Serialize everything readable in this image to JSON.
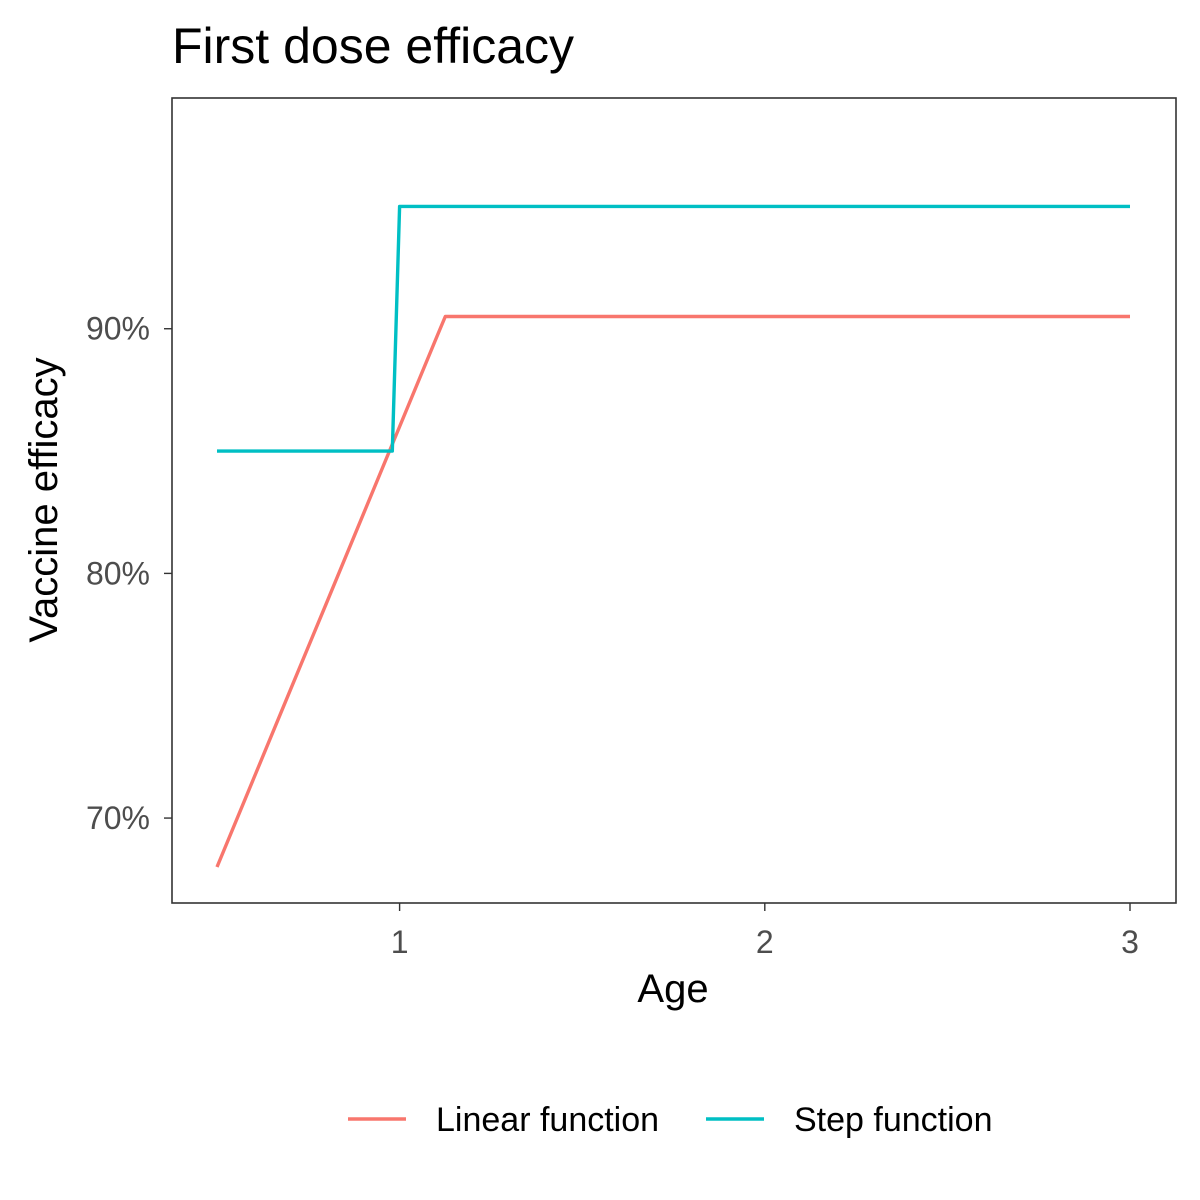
{
  "chart_data": {
    "type": "line",
    "title": "First dose efficacy",
    "xlabel": "Age",
    "ylabel": "Vaccine efficacy",
    "xlim": [
      0.5,
      3.0
    ],
    "ylim": [
      0.68,
      0.98
    ],
    "x_ticks": [
      {
        "value": 1,
        "label": "1"
      },
      {
        "value": 2,
        "label": "2"
      },
      {
        "value": 3,
        "label": "3"
      }
    ],
    "y_ticks": [
      {
        "value": 0.7,
        "label": "70%"
      },
      {
        "value": 0.8,
        "label": "80%"
      },
      {
        "value": 0.9,
        "label": "90%"
      }
    ],
    "grid": false,
    "legend_position": "bottom",
    "series": [
      {
        "name": "Linear function",
        "color": "#F8766D",
        "x": [
          0.5,
          0.6,
          0.7,
          0.8,
          0.9,
          1.0,
          1.1,
          1.125,
          1.5,
          2.0,
          2.5,
          3.0
        ],
        "y": [
          0.68,
          0.716,
          0.752,
          0.788,
          0.824,
          0.86,
          0.896,
          0.905,
          0.905,
          0.905,
          0.905,
          0.905
        ]
      },
      {
        "name": "Step function",
        "color": "#00BFC4",
        "x": [
          0.5,
          0.98,
          1.0,
          1.5,
          2.0,
          2.5,
          3.0
        ],
        "y": [
          0.85,
          0.85,
          0.95,
          0.95,
          0.95,
          0.95,
          0.95
        ]
      }
    ]
  }
}
